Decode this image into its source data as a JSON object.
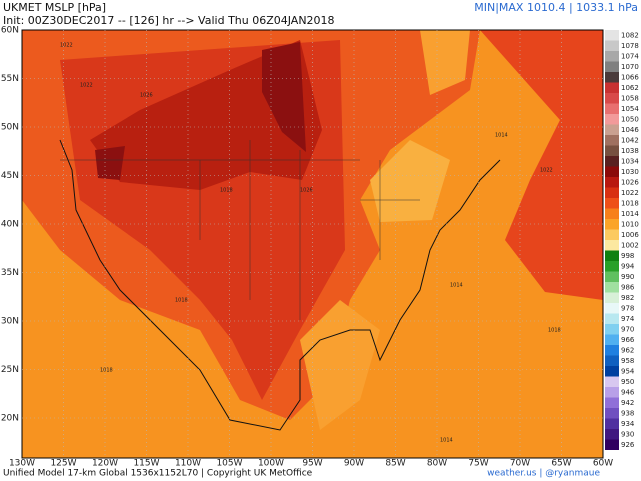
{
  "header": {
    "title": "UKMET MSLP [hPa]",
    "subtitle": "Init: 00Z30DEC2017 -- [126] hr --> Valid Thu 06Z04JAN2018",
    "minmax": "MIN|MAX 1010.4 | 1033.1 hPa"
  },
  "map": {
    "lat_labels": [
      "60N",
      "55N",
      "50N",
      "45N",
      "40N",
      "35N",
      "30N",
      "25N",
      "20N"
    ],
    "lon_labels": [
      "130W",
      "125W",
      "120W",
      "115W",
      "110W",
      "105W",
      "100W",
      "95W",
      "90W",
      "85W",
      "80W",
      "75W",
      "70W",
      "65W",
      "60W"
    ],
    "isobar_labels": [
      "1022",
      "1026",
      "1026",
      "1018",
      "1018",
      "1014",
      "1022",
      "1014",
      "1018",
      "1018",
      "1022",
      "1014"
    ]
  },
  "colorbar": {
    "levels": [
      {
        "label": "1082",
        "color": "#e4e4e4"
      },
      {
        "label": "1078",
        "color": "#c8c8c8"
      },
      {
        "label": "1074",
        "color": "#a8a8a8"
      },
      {
        "label": "1070",
        "color": "#808080"
      },
      {
        "label": "1066",
        "color": "#4a3a3a"
      },
      {
        "label": "1062",
        "color": "#c83232"
      },
      {
        "label": "1058",
        "color": "#d84a4a"
      },
      {
        "label": "1054",
        "color": "#e87070"
      },
      {
        "label": "1050",
        "color": "#f29a9a"
      },
      {
        "label": "1046",
        "color": "#caa090"
      },
      {
        "label": "1042",
        "color": "#a07060"
      },
      {
        "label": "1038",
        "color": "#785040"
      },
      {
        "label": "1034",
        "color": "#5a2020"
      },
      {
        "label": "1030",
        "color": "#8b0a0a"
      },
      {
        "label": "1026",
        "color": "#b81810"
      },
      {
        "label": "1022",
        "color": "#d83012"
      },
      {
        "label": "1018",
        "color": "#ee5018"
      },
      {
        "label": "1014",
        "color": "#f7801a"
      },
      {
        "label": "1010",
        "color": "#fba428"
      },
      {
        "label": "1006",
        "color": "#fcca60"
      },
      {
        "label": "1002",
        "color": "#fce8a0"
      },
      {
        "label": "998",
        "color": "#108010"
      },
      {
        "label": "994",
        "color": "#28a028"
      },
      {
        "label": "990",
        "color": "#60c060"
      },
      {
        "label": "986",
        "color": "#a0e0a0"
      },
      {
        "label": "982",
        "color": "#d8f0d8"
      },
      {
        "label": "978",
        "color": "#e8f8f8"
      },
      {
        "label": "974",
        "color": "#b8e8f0"
      },
      {
        "label": "970",
        "color": "#80d0f0"
      },
      {
        "label": "966",
        "color": "#50b0f0"
      },
      {
        "label": "962",
        "color": "#2080e0"
      },
      {
        "label": "958",
        "color": "#1060c0"
      },
      {
        "label": "954",
        "color": "#0040a0"
      },
      {
        "label": "950",
        "color": "#d8c8f0"
      },
      {
        "label": "946",
        "color": "#b8a0e8"
      },
      {
        "label": "942",
        "color": "#9070d8"
      },
      {
        "label": "938",
        "color": "#7050c0"
      },
      {
        "label": "934",
        "color": "#5030a0"
      },
      {
        "label": "930",
        "color": "#401880"
      },
      {
        "label": "926",
        "color": "#300060"
      }
    ]
  },
  "footer": {
    "left": "Unified Model 17-km Global 1536x1152L70 | Copyright UK MetOffice",
    "right": "weather.us | @ryanmaue"
  }
}
